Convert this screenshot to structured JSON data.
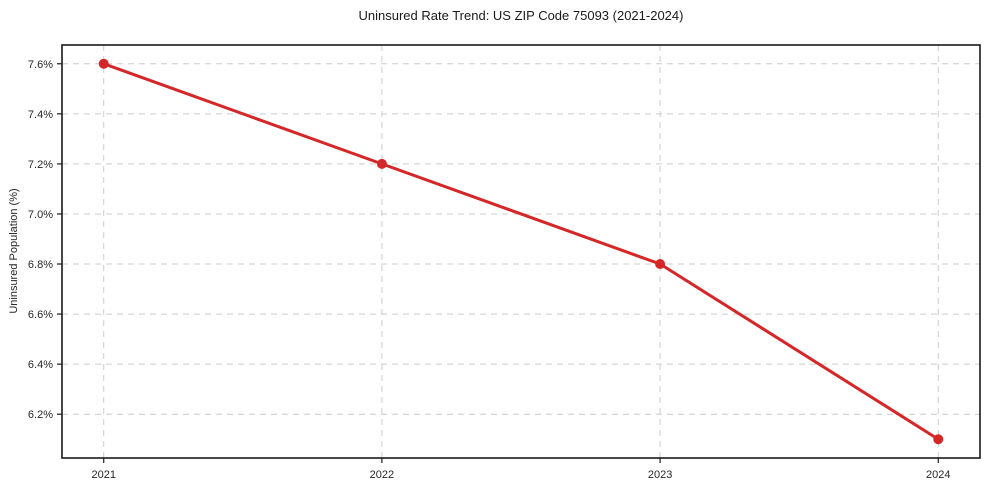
{
  "chart": {
    "title": "Uninsured Rate Trend: US ZIP Code 75093 (2021-2024)",
    "ylabel": "Uninsured Population (%)"
  },
  "chart_data": {
    "type": "line",
    "title": "Uninsured Rate Trend: US ZIP Code 75093 (2021-2024)",
    "xlabel": "",
    "ylabel": "Uninsured Population (%)",
    "x": [
      2021,
      2022,
      2023,
      2024
    ],
    "y": [
      7.6,
      7.2,
      6.8,
      6.1
    ],
    "x_tick_labels": [
      "2021",
      "2022",
      "2023",
      "2024"
    ],
    "y_tick_values": [
      6.2,
      6.4,
      6.6,
      6.8,
      7.0,
      7.2,
      7.4,
      7.6
    ],
    "y_tick_labels": [
      "6.2%",
      "6.4%",
      "6.6%",
      "6.8%",
      "7.0%",
      "7.2%",
      "7.4%",
      "7.6%"
    ],
    "xlim": [
      2020.85,
      2024.15
    ],
    "ylim": [
      6.025,
      7.675
    ],
    "grid": true,
    "legend": "none",
    "line_color": "#d62728",
    "marker": "circle",
    "marker_radius": 5,
    "line_width": 3,
    "grid_color": "#cccccc",
    "axis_color": "#1a1a1a",
    "text_color": "#262626"
  }
}
